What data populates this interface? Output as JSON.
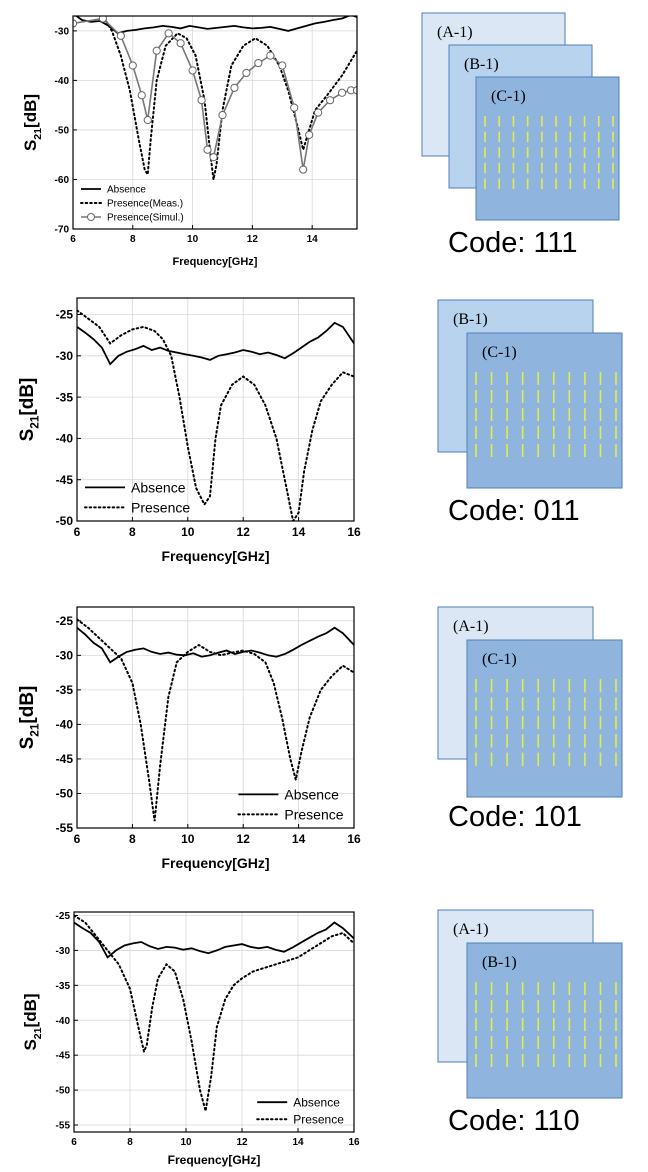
{
  "colors": {
    "sheet_A": "#dbe7f4",
    "sheet_B": "#b8d3ed",
    "sheet_C": "#8fb4de",
    "sheet_border": "#4f7fb8",
    "strip": "#e3ec4a",
    "line": "#000000"
  },
  "chart_data": [
    {
      "type": "line",
      "xlabel": "Frequency[GHz]",
      "ylabel_main": "S",
      "ylabel_sub": "21",
      "ylabel_tail": "[dB]",
      "xlim": [
        6,
        15.5
      ],
      "ylim": [
        -70,
        -27
      ],
      "xticks": [
        6,
        8,
        10,
        12,
        14
      ],
      "yticks": [
        -70,
        -60,
        -50,
        -40,
        -30
      ],
      "grid": true,
      "legend_position": "bottom-left",
      "series": [
        {
          "name": "Absence",
          "style": "solid",
          "x": [
            6,
            6.3,
            6.6,
            6.9,
            7.2,
            7.5,
            7.8,
            8.1,
            8.4,
            8.7,
            9.0,
            9.3,
            9.6,
            9.9,
            10.2,
            10.5,
            10.8,
            11.1,
            11.4,
            11.7,
            12.0,
            12.3,
            12.6,
            12.9,
            13.2,
            13.5,
            13.8,
            14.1,
            14.4,
            14.7,
            15.0,
            15.3,
            15.5
          ],
          "y": [
            -26.5,
            -27.8,
            -28.2,
            -28.0,
            -29.0,
            -30.5,
            -30.0,
            -29.8,
            -29.5,
            -29.3,
            -29.0,
            -29.2,
            -29.5,
            -29.0,
            -29.3,
            -29.6,
            -29.4,
            -29.2,
            -29.0,
            -29.3,
            -29.5,
            -29.4,
            -29.2,
            -29.6,
            -30.0,
            -29.5,
            -29.0,
            -28.5,
            -28.2,
            -27.8,
            -27.5,
            -26.8,
            -27.2
          ]
        },
        {
          "name": "Presence(Meas.)",
          "style": "dotted",
          "x": [
            6,
            6.5,
            7.0,
            7.3,
            7.6,
            7.9,
            8.2,
            8.4,
            8.5,
            8.6,
            8.8,
            9.1,
            9.5,
            9.8,
            10.1,
            10.4,
            10.6,
            10.7,
            10.8,
            11.0,
            11.3,
            11.7,
            12.1,
            12.5,
            12.9,
            13.2,
            13.5,
            13.7,
            13.9,
            14.1,
            14.5,
            15.0,
            15.5
          ],
          "y": [
            -26,
            -26.5,
            -27,
            -30,
            -35,
            -42,
            -52,
            -58,
            -59,
            -52,
            -40,
            -33,
            -30.5,
            -31.5,
            -35,
            -44,
            -55,
            -60,
            -57,
            -46,
            -37,
            -33,
            -31.5,
            -33,
            -37,
            -42,
            -49,
            -54,
            -50,
            -46,
            -43,
            -39,
            -34
          ]
        },
        {
          "name": "Presence(Simul.)",
          "style": "solid-marker",
          "x": [
            6.0,
            7.0,
            7.6,
            8.0,
            8.3,
            8.5,
            8.8,
            9.2,
            9.6,
            10.0,
            10.3,
            10.5,
            10.7,
            11.0,
            11.4,
            11.8,
            12.2,
            12.6,
            13.0,
            13.4,
            13.7,
            13.9,
            14.2,
            14.6,
            15.0,
            15.3,
            15.5
          ],
          "y": [
            -28.5,
            -27.5,
            -31,
            -37,
            -43,
            -48,
            -34,
            -30.5,
            -32.5,
            -38,
            -44,
            -54,
            -55.5,
            -47,
            -41.5,
            -38.5,
            -36.5,
            -35,
            -37,
            -45.5,
            -58,
            -51,
            -46.5,
            -44,
            -42.5,
            -42,
            -42
          ]
        }
      ]
    },
    {
      "type": "line",
      "xlabel": "Frequency[GHz]",
      "ylabel_main": "S",
      "ylabel_sub": "21",
      "ylabel_tail": "[dB]",
      "xlim": [
        6,
        16
      ],
      "ylim": [
        -50,
        -23
      ],
      "xticks": [
        6,
        8,
        10,
        12,
        14,
        16
      ],
      "yticks": [
        -50,
        -45,
        -40,
        -35,
        -30,
        -25
      ],
      "grid": true,
      "legend_position": "bottom-left",
      "series": [
        {
          "name": "Absence",
          "style": "solid",
          "x": [
            6,
            6.3,
            6.6,
            6.9,
            7.2,
            7.5,
            7.8,
            8.1,
            8.4,
            8.7,
            9.0,
            9.3,
            9.6,
            9.9,
            10.2,
            10.5,
            10.8,
            11.1,
            11.4,
            11.7,
            12.0,
            12.3,
            12.6,
            12.9,
            13.2,
            13.5,
            13.8,
            14.1,
            14.4,
            14.7,
            15.0,
            15.3,
            15.6,
            16.0
          ],
          "y": [
            -26.5,
            -27.2,
            -28.0,
            -29.0,
            -31.0,
            -30.0,
            -29.5,
            -29.2,
            -28.8,
            -29.3,
            -29.0,
            -29.4,
            -29.6,
            -29.8,
            -30.0,
            -30.2,
            -30.5,
            -30.0,
            -29.8,
            -29.6,
            -29.3,
            -29.5,
            -29.8,
            -29.6,
            -29.9,
            -30.3,
            -29.7,
            -29.0,
            -28.3,
            -27.8,
            -27.0,
            -26.0,
            -26.5,
            -28.5
          ]
        },
        {
          "name": "Presence",
          "style": "dotted",
          "x": [
            6,
            6.4,
            6.8,
            7.2,
            7.6,
            8.0,
            8.4,
            8.8,
            9.1,
            9.4,
            9.7,
            10.0,
            10.3,
            10.6,
            10.8,
            11.0,
            11.2,
            11.6,
            12.0,
            12.4,
            12.8,
            13.2,
            13.5,
            13.8,
            14.0,
            14.2,
            14.5,
            14.8,
            15.2,
            15.6,
            16.0
          ],
          "y": [
            -24.5,
            -25.5,
            -26.5,
            -28.5,
            -27.5,
            -26.8,
            -26.5,
            -27.0,
            -28.0,
            -30.0,
            -35.0,
            -41.0,
            -46.0,
            -48.0,
            -47.0,
            -40.0,
            -36.0,
            -33.5,
            -32.5,
            -33.5,
            -36.0,
            -40.0,
            -45.0,
            -50.0,
            -49.0,
            -44.0,
            -39.0,
            -35.5,
            -33.5,
            -32.0,
            -32.5
          ]
        }
      ]
    },
    {
      "type": "line",
      "xlabel": "Frequency[GHz]",
      "ylabel_main": "S",
      "ylabel_sub": "21",
      "ylabel_tail": "[dB]",
      "xlim": [
        6,
        16
      ],
      "ylim": [
        -55,
        -23
      ],
      "xticks": [
        6,
        8,
        10,
        12,
        14,
        16
      ],
      "yticks": [
        -55,
        -50,
        -45,
        -40,
        -35,
        -30,
        -25
      ],
      "grid": true,
      "legend_position": "bottom-right",
      "series": [
        {
          "name": "Absence",
          "style": "solid",
          "x": [
            6,
            6.3,
            6.6,
            6.9,
            7.2,
            7.5,
            7.8,
            8.1,
            8.4,
            8.7,
            9.0,
            9.3,
            9.6,
            9.9,
            10.2,
            10.5,
            10.8,
            11.1,
            11.4,
            11.7,
            12.0,
            12.3,
            12.6,
            12.9,
            13.2,
            13.5,
            13.8,
            14.1,
            14.4,
            14.7,
            15.0,
            15.3,
            15.6,
            16.0
          ],
          "y": [
            -26.0,
            -27.0,
            -28.2,
            -29.0,
            -31.0,
            -30.2,
            -29.5,
            -29.2,
            -29.0,
            -29.5,
            -29.8,
            -29.6,
            -29.9,
            -30.0,
            -29.7,
            -30.2,
            -30.0,
            -29.6,
            -29.3,
            -29.8,
            -29.5,
            -29.3,
            -29.6,
            -30.0,
            -30.2,
            -29.8,
            -29.2,
            -28.5,
            -27.9,
            -27.3,
            -26.8,
            -26.0,
            -26.8,
            -28.5
          ]
        },
        {
          "name": "Presence",
          "style": "dotted",
          "x": [
            6,
            6.4,
            6.8,
            7.2,
            7.6,
            8.0,
            8.3,
            8.6,
            8.8,
            9.0,
            9.3,
            9.6,
            10.0,
            10.4,
            10.8,
            11.2,
            11.6,
            12.0,
            12.4,
            12.8,
            13.1,
            13.4,
            13.7,
            13.9,
            14.1,
            14.4,
            14.8,
            15.2,
            15.6,
            16.0
          ],
          "y": [
            -24.8,
            -26.0,
            -27.5,
            -29.0,
            -30.5,
            -34.0,
            -40.0,
            -48.0,
            -54.0,
            -46.0,
            -36.0,
            -31.0,
            -29.5,
            -28.5,
            -29.5,
            -30.0,
            -29.6,
            -29.3,
            -29.8,
            -31.0,
            -34.0,
            -39.0,
            -45.0,
            -48.0,
            -44.0,
            -39.0,
            -35.0,
            -33.0,
            -31.5,
            -32.5
          ]
        }
      ]
    },
    {
      "type": "line",
      "xlabel": "Frequency[GHz]",
      "ylabel_main": "S",
      "ylabel_sub": "21",
      "ylabel_tail": "[dB]",
      "xlim": [
        6,
        16
      ],
      "ylim": [
        -56,
        -24.5
      ],
      "xticks": [
        6,
        8,
        10,
        12,
        14,
        16
      ],
      "yticks": [
        -55,
        -50,
        -45,
        -40,
        -35,
        -30,
        -25
      ],
      "grid": true,
      "legend_position": "bottom-right",
      "series": [
        {
          "name": "Absence",
          "style": "solid",
          "x": [
            6,
            6.3,
            6.6,
            6.9,
            7.2,
            7.5,
            7.8,
            8.1,
            8.4,
            8.7,
            9.0,
            9.3,
            9.6,
            9.9,
            10.2,
            10.5,
            10.8,
            11.1,
            11.4,
            11.7,
            12.0,
            12.3,
            12.6,
            12.9,
            13.2,
            13.5,
            13.8,
            14.1,
            14.4,
            14.7,
            15.0,
            15.3,
            15.6,
            16.0
          ],
          "y": [
            -26.0,
            -26.8,
            -27.5,
            -28.8,
            -31.0,
            -30.0,
            -29.3,
            -29.0,
            -28.8,
            -29.4,
            -29.8,
            -29.5,
            -29.6,
            -29.9,
            -29.7,
            -30.1,
            -30.4,
            -30.0,
            -29.5,
            -29.3,
            -29.1,
            -29.5,
            -29.7,
            -29.5,
            -29.9,
            -30.2,
            -29.6,
            -28.9,
            -28.2,
            -27.5,
            -27.0,
            -26.0,
            -26.8,
            -28.3
          ]
        },
        {
          "name": "Presence",
          "style": "dotted",
          "x": [
            6,
            6.4,
            6.8,
            7.2,
            7.6,
            8.0,
            8.3,
            8.5,
            8.6,
            8.8,
            9.0,
            9.3,
            9.6,
            9.9,
            10.2,
            10.5,
            10.7,
            10.9,
            11.1,
            11.4,
            11.7,
            12.0,
            12.4,
            12.8,
            13.2,
            13.6,
            14.0,
            14.4,
            14.8,
            15.2,
            15.6,
            16.0
          ],
          "y": [
            -25.0,
            -26.0,
            -28.0,
            -30.0,
            -32.0,
            -35.5,
            -41.0,
            -44.5,
            -43.5,
            -38.0,
            -34.0,
            -32.0,
            -33.0,
            -37.0,
            -43.0,
            -50.0,
            -53.0,
            -48.0,
            -41.0,
            -37.0,
            -35.0,
            -34.0,
            -33.0,
            -32.5,
            -32.0,
            -31.5,
            -31.0,
            -30.0,
            -29.0,
            -28.0,
            -27.5,
            -29.0
          ]
        }
      ]
    }
  ],
  "diagrams": [
    {
      "sheets": [
        "(A-1)",
        "(B-1)",
        "(C-1)"
      ],
      "code": "Code: 111"
    },
    {
      "sheets": [
        "(B-1)",
        "(C-1)"
      ],
      "code": "Code: 011"
    },
    {
      "sheets": [
        "(A-1)",
        "(C-1)"
      ],
      "code": "Code: 101"
    },
    {
      "sheets": [
        "(A-1)",
        "(B-1)"
      ],
      "code": "Code: 110"
    }
  ]
}
